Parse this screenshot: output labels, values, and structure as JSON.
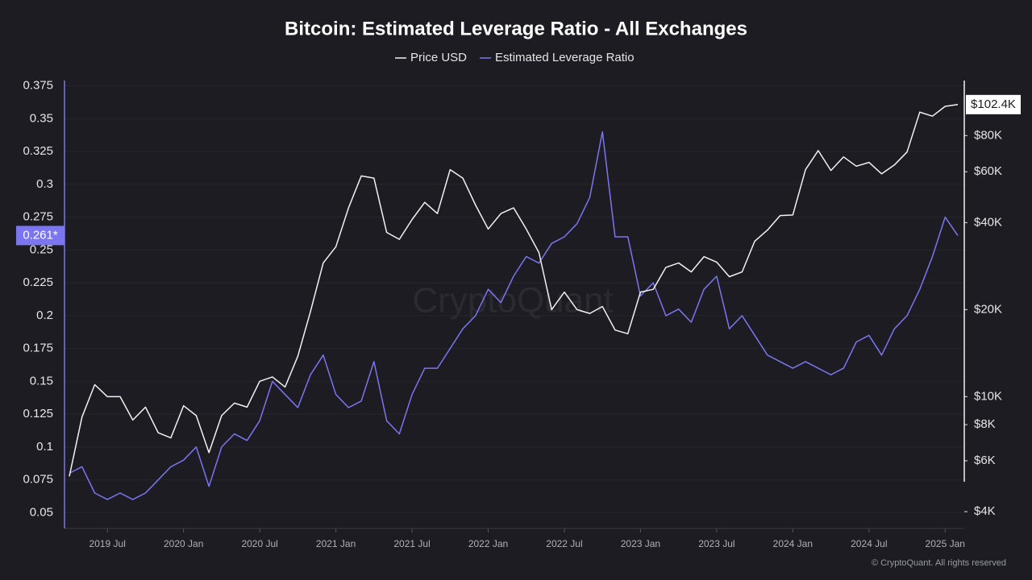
{
  "chart_data": {
    "type": "line",
    "title": "Bitcoin: Estimated Leverage Ratio - All Exchanges",
    "watermark": "CryptoQuant",
    "credit": "© CryptoQuant. All rights reserved",
    "x": [
      "2019-04",
      "2019-05",
      "2019-06",
      "2019-07",
      "2019-08",
      "2019-09",
      "2019-10",
      "2019-11",
      "2019-12",
      "2020-01",
      "2020-02",
      "2020-03",
      "2020-04",
      "2020-05",
      "2020-06",
      "2020-07",
      "2020-08",
      "2020-09",
      "2020-10",
      "2020-11",
      "2020-12",
      "2021-01",
      "2021-02",
      "2021-03",
      "2021-04",
      "2021-05",
      "2021-06",
      "2021-07",
      "2021-08",
      "2021-09",
      "2021-10",
      "2021-11",
      "2021-12",
      "2022-01",
      "2022-02",
      "2022-03",
      "2022-04",
      "2022-05",
      "2022-06",
      "2022-07",
      "2022-08",
      "2022-09",
      "2022-10",
      "2022-11",
      "2022-12",
      "2023-01",
      "2023-02",
      "2023-03",
      "2023-04",
      "2023-05",
      "2023-06",
      "2023-07",
      "2023-08",
      "2023-09",
      "2023-10",
      "2023-11",
      "2023-12",
      "2024-01",
      "2024-02",
      "2024-03",
      "2024-04",
      "2024-05",
      "2024-06",
      "2024-07",
      "2024-08",
      "2024-09",
      "2024-10",
      "2024-11",
      "2024-12",
      "2025-01",
      "2025-02"
    ],
    "xlim": [
      "2019-04",
      "2025-02"
    ],
    "xticks": [
      {
        "value": "2019-07",
        "label": "2019 Jul"
      },
      {
        "value": "2020-01",
        "label": "2020 Jan"
      },
      {
        "value": "2020-07",
        "label": "2020 Jul"
      },
      {
        "value": "2021-01",
        "label": "2021 Jan"
      },
      {
        "value": "2021-07",
        "label": "2021 Jul"
      },
      {
        "value": "2022-01",
        "label": "2022 Jan"
      },
      {
        "value": "2022-07",
        "label": "2022 Jul"
      },
      {
        "value": "2023-01",
        "label": "2023 Jan"
      },
      {
        "value": "2023-07",
        "label": "2023 Jul"
      },
      {
        "value": "2024-01",
        "label": "2024 Jan"
      },
      {
        "value": "2024-07",
        "label": "2024 Jul"
      },
      {
        "value": "2025-01",
        "label": "2025 Jan"
      }
    ],
    "ylim": [
      0.038,
      0.379
    ],
    "yticks": [
      0.05,
      0.075,
      0.1,
      0.125,
      0.15,
      0.175,
      0.2,
      0.225,
      0.25,
      0.275,
      0.3,
      0.325,
      0.35,
      0.375
    ],
    "y2lim": [
      3500,
      124000
    ],
    "y2scale": "log",
    "y2ticks": [
      {
        "value": 4000,
        "label": "$4K"
      },
      {
        "value": 6000,
        "label": "$6K"
      },
      {
        "value": 8000,
        "label": "$8K"
      },
      {
        "value": 10000,
        "label": "$10K"
      },
      {
        "value": 20000,
        "label": "$20K"
      },
      {
        "value": 40000,
        "label": "$40K"
      },
      {
        "value": 60000,
        "label": "$60K"
      },
      {
        "value": 80000,
        "label": "$80K"
      }
    ],
    "grid": true,
    "legend": "top",
    "series": [
      {
        "name": "Price USD",
        "color": "#f2f2f2",
        "axis": "y2",
        "last_label": "$102.4K",
        "values": [
          5300,
          8500,
          11000,
          10000,
          10000,
          8300,
          9200,
          7500,
          7200,
          9300,
          8600,
          6400,
          8600,
          9500,
          9200,
          11300,
          11700,
          10800,
          13800,
          19700,
          29000,
          33000,
          45000,
          58000,
          57000,
          37000,
          35000,
          41000,
          47000,
          43000,
          61000,
          57000,
          46000,
          38000,
          43000,
          45000,
          38000,
          31500,
          20000,
          23000,
          20000,
          19400,
          20500,
          17000,
          16500,
          23000,
          23500,
          28000,
          29000,
          27000,
          30500,
          29200,
          26000,
          27000,
          34500,
          37700,
          42300,
          42500,
          61000,
          71000,
          60600,
          67500,
          62700,
          64600,
          59000,
          63300,
          70200,
          96400,
          93400,
          101000,
          102400
        ]
      },
      {
        "name": "Estimated Leverage Ratio",
        "color": "#7b76f0",
        "axis": "y",
        "last_label": "0.261*",
        "values": [
          0.08,
          0.085,
          0.065,
          0.06,
          0.065,
          0.06,
          0.065,
          0.075,
          0.085,
          0.09,
          0.1,
          0.07,
          0.1,
          0.11,
          0.105,
          0.12,
          0.15,
          0.14,
          0.13,
          0.155,
          0.17,
          0.14,
          0.13,
          0.135,
          0.165,
          0.12,
          0.11,
          0.14,
          0.16,
          0.16,
          0.175,
          0.19,
          0.2,
          0.22,
          0.21,
          0.23,
          0.245,
          0.24,
          0.255,
          0.26,
          0.27,
          0.29,
          0.34,
          0.26,
          0.26,
          0.215,
          0.225,
          0.2,
          0.205,
          0.195,
          0.22,
          0.23,
          0.19,
          0.2,
          0.185,
          0.17,
          0.165,
          0.16,
          0.165,
          0.16,
          0.155,
          0.16,
          0.18,
          0.185,
          0.17,
          0.19,
          0.2,
          0.22,
          0.245,
          0.275,
          0.261
        ]
      }
    ]
  }
}
